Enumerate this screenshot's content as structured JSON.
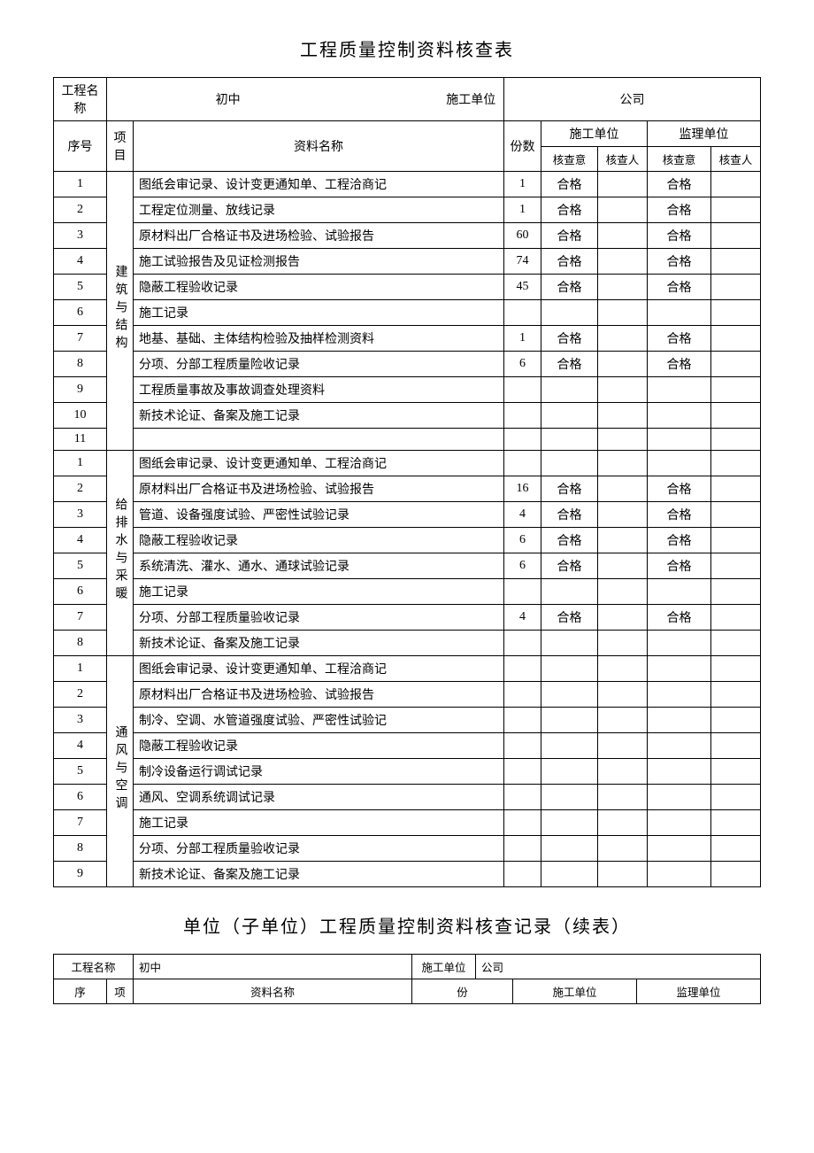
{
  "doc": {
    "title1": "工程质量控制资料核查表",
    "title2": "单位（子单位）工程质量控制资料核查记录（续表）"
  },
  "labels": {
    "projectNameLabel": "工程名称",
    "constructionUnitLabel": "施工单位",
    "seq": "序号",
    "category": "项目",
    "materialName": "资料名称",
    "qty": "份数",
    "constructionUnit": "施工单位",
    "supervisionUnit": "监理单位",
    "opinion": "核查意",
    "inspector": "核查人",
    "seqShort": "序",
    "categoryShort": "项",
    "qtyShort": "份"
  },
  "header": {
    "projectName": "初中",
    "constructionUnit": "公司"
  },
  "sections": [
    {
      "category": "建筑与结构",
      "rows": [
        {
          "n": "1",
          "name": "图纸会审记录、设计变更通知单、工程洽商记",
          "qty": "1",
          "op1": "合格",
          "p1": "",
          "op2": "合格",
          "p2": ""
        },
        {
          "n": "2",
          "name": "工程定位测量、放线记录",
          "qty": "1",
          "op1": "合格",
          "p1": "",
          "op2": "合格",
          "p2": ""
        },
        {
          "n": "3",
          "name": "原材料出厂合格证书及进场检验、试验报告",
          "qty": "60",
          "op1": "合格",
          "p1": "",
          "op2": "合格",
          "p2": ""
        },
        {
          "n": "4",
          "name": "施工试验报告及见证检测报告",
          "qty": "74",
          "op1": "合格",
          "p1": "",
          "op2": "合格",
          "p2": ""
        },
        {
          "n": "5",
          "name": "隐蔽工程验收记录",
          "qty": "45",
          "op1": "合格",
          "p1": "",
          "op2": "合格",
          "p2": ""
        },
        {
          "n": "6",
          "name": "施工记录",
          "qty": "",
          "op1": "",
          "p1": "",
          "op2": "",
          "p2": ""
        },
        {
          "n": "7",
          "name": "地基、基础、主体结构检验及抽样检测资料",
          "qty": "1",
          "op1": "合格",
          "p1": "",
          "op2": "合格",
          "p2": ""
        },
        {
          "n": "8",
          "name": "分项、分部工程质量险收记录",
          "qty": "6",
          "op1": "合格",
          "p1": "",
          "op2": "合格",
          "p2": ""
        },
        {
          "n": "9",
          "name": "工程质量事故及事故调查处理资料",
          "qty": "",
          "op1": "",
          "p1": "",
          "op2": "",
          "p2": ""
        },
        {
          "n": "10",
          "name": "新技术论证、备案及施工记录",
          "qty": "",
          "op1": "",
          "p1": "",
          "op2": "",
          "p2": ""
        },
        {
          "n": "11",
          "name": "",
          "qty": "",
          "op1": "",
          "p1": "",
          "op2": "",
          "p2": ""
        }
      ]
    },
    {
      "category": "给排水与采暖",
      "rows": [
        {
          "n": "1",
          "name": "图纸会审记录、设计变更通知单、工程洽商记",
          "qty": "",
          "op1": "",
          "p1": "",
          "op2": "",
          "p2": ""
        },
        {
          "n": "2",
          "name": "原材料出厂合格证书及进场检验、试验报告",
          "qty": "16",
          "op1": "合格",
          "p1": "",
          "op2": "合格",
          "p2": ""
        },
        {
          "n": "3",
          "name": "管道、设备强度试验、严密性试验记录",
          "qty": "4",
          "op1": "合格",
          "p1": "",
          "op2": "合格",
          "p2": ""
        },
        {
          "n": "4",
          "name": "隐蔽工程验收记录",
          "qty": "6",
          "op1": "合格",
          "p1": "",
          "op2": "合格",
          "p2": ""
        },
        {
          "n": "5",
          "name": "系统清洗、灌水、通水、通球试验记录",
          "qty": "6",
          "op1": "合格",
          "p1": "",
          "op2": "合格",
          "p2": ""
        },
        {
          "n": "6",
          "name": "施工记录",
          "qty": "",
          "op1": "",
          "p1": "",
          "op2": "",
          "p2": ""
        },
        {
          "n": "7",
          "name": "分项、分部工程质量验收记录",
          "qty": "4",
          "op1": "合格",
          "p1": "",
          "op2": "合格",
          "p2": ""
        },
        {
          "n": "8",
          "name": "新技术论证、备案及施工记录",
          "qty": "",
          "op1": "",
          "p1": "",
          "op2": "",
          "p2": ""
        }
      ]
    },
    {
      "category": "通风与空调",
      "rows": [
        {
          "n": "1",
          "name": "图纸会审记录、设计变更通知单、工程洽商记",
          "qty": "",
          "op1": "",
          "p1": "",
          "op2": "",
          "p2": ""
        },
        {
          "n": "2",
          "name": "原材料出厂合格证书及进场检验、试验报告",
          "qty": "",
          "op1": "",
          "p1": "",
          "op2": "",
          "p2": ""
        },
        {
          "n": "3",
          "name": "制冷、空调、水管道强度试验、严密性试验记",
          "qty": "",
          "op1": "",
          "p1": "",
          "op2": "",
          "p2": ""
        },
        {
          "n": "4",
          "name": "隐蔽工程验收记录",
          "qty": "",
          "op1": "",
          "p1": "",
          "op2": "",
          "p2": ""
        },
        {
          "n": "5",
          "name": "制冷设备运行调试记录",
          "qty": "",
          "op1": "",
          "p1": "",
          "op2": "",
          "p2": ""
        },
        {
          "n": "6",
          "name": "通风、空调系统调试记录",
          "qty": "",
          "op1": "",
          "p1": "",
          "op2": "",
          "p2": ""
        },
        {
          "n": "7",
          "name": "施工记录",
          "qty": "",
          "op1": "",
          "p1": "",
          "op2": "",
          "p2": ""
        },
        {
          "n": "8",
          "name": "分项、分部工程质量验收记录",
          "qty": "",
          "op1": "",
          "p1": "",
          "op2": "",
          "p2": ""
        },
        {
          "n": "9",
          "name": "新技术论证、备案及施工记录",
          "qty": "",
          "op1": "",
          "p1": "",
          "op2": "",
          "p2": ""
        }
      ]
    }
  ],
  "header2": {
    "projectName": "初中",
    "constructionUnit": "公司"
  }
}
